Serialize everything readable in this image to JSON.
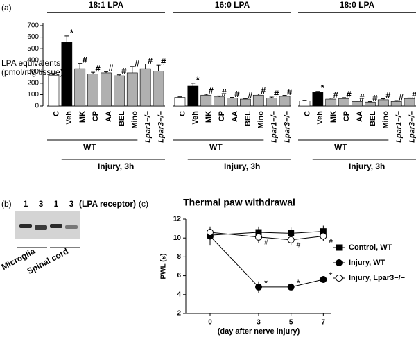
{
  "chart_data": [
    {
      "type": "bar",
      "panel_label": "(a)",
      "title": "18:1 LPA",
      "y_label": [
        "LPA equivalents",
        "(pmol/mg tissue)"
      ],
      "categories": [
        "C",
        "Veh",
        "MK",
        "CP",
        "AA",
        "BEL",
        "Mino",
        "Lpar1−/−",
        "Lpar3−/−"
      ],
      "values": [
        270,
        555,
        325,
        280,
        290,
        265,
        290,
        325,
        305
      ],
      "errors": [
        15,
        55,
        45,
        15,
        10,
        8,
        55,
        40,
        50
      ],
      "markers": [
        null,
        "*",
        "#",
        "#",
        "#",
        "#",
        "#",
        "#",
        "#"
      ],
      "colors": [
        "#ffffff",
        "#000000",
        "#b0b0b0",
        "#b0b0b0",
        "#b0b0b0",
        "#b0b0b0",
        "#b0b0b0",
        "#b0b0b0",
        "#b0b0b0"
      ],
      "ylim": [
        0,
        700
      ],
      "yticks": [
        0,
        100,
        200,
        300,
        400,
        500,
        600,
        700
      ],
      "group_labels": [
        "WT",
        "Injury, 3h"
      ]
    },
    {
      "type": "bar",
      "title": "16:0 LPA",
      "categories": [
        "C",
        "Veh",
        "MK",
        "CP",
        "AA",
        "BEL",
        "Mino",
        "Lpar1−/−",
        "Lpar3−/−"
      ],
      "values": [
        75,
        175,
        95,
        80,
        70,
        60,
        95,
        70,
        85
      ],
      "errors": [
        5,
        25,
        8,
        8,
        5,
        5,
        10,
        8,
        8
      ],
      "markers": [
        null,
        "*",
        "#",
        "#",
        "#",
        "#",
        "#",
        "#",
        "#"
      ],
      "colors": [
        "#ffffff",
        "#000000",
        "#b0b0b0",
        "#b0b0b0",
        "#b0b0b0",
        "#b0b0b0",
        "#b0b0b0",
        "#b0b0b0",
        "#b0b0b0"
      ],
      "ylim": [
        0,
        700
      ],
      "group_labels": [
        "WT",
        "Injury, 3h"
      ]
    },
    {
      "type": "bar",
      "title": "18:0 LPA",
      "categories": [
        "C",
        "Veh",
        "MK",
        "CP",
        "AA",
        "BEL",
        "Mino",
        "Lpar1−/−",
        "Lpar3−/−"
      ],
      "values": [
        45,
        120,
        60,
        65,
        40,
        35,
        55,
        40,
        65
      ],
      "errors": [
        5,
        8,
        8,
        8,
        5,
        5,
        8,
        8,
        5
      ],
      "markers": [
        null,
        "*",
        "#",
        "#",
        "#",
        "#",
        "#",
        "#",
        "#"
      ],
      "colors": [
        "#ffffff",
        "#000000",
        "#b0b0b0",
        "#b0b0b0",
        "#b0b0b0",
        "#b0b0b0",
        "#b0b0b0",
        "#b0b0b0",
        "#b0b0b0"
      ],
      "ylim": [
        0,
        700
      ],
      "group_labels": [
        "WT",
        "Injury, 3h"
      ]
    },
    {
      "type": "line",
      "panel_label": "(c)",
      "title": "Thermal paw withdrawal",
      "x_label": "(day after nerve injury)",
      "y_label": "PWL (s)",
      "x": [
        0,
        3,
        5,
        7
      ],
      "xlim": [
        -1.5,
        7.5
      ],
      "xticks": [
        0,
        3,
        5,
        7
      ],
      "ylim": [
        2,
        12
      ],
      "yticks": [
        2,
        4,
        6,
        8,
        10,
        12
      ],
      "series": [
        {
          "name": "Control, WT",
          "color": "#000000",
          "fill": "#000000",
          "marker": "square",
          "values": [
            10.3,
            10.6,
            10.5,
            10.7
          ],
          "errors": [
            0.8,
            0.6,
            0.6,
            0.6
          ],
          "markers": [
            null,
            null,
            null,
            null
          ]
        },
        {
          "name": "Injury, WT",
          "color": "#000000",
          "fill": "#000000",
          "marker": "circle",
          "values": [
            10.2,
            4.8,
            4.8,
            5.6
          ],
          "errors": [
            1.0,
            0.6,
            0.4,
            0.2
          ],
          "markers": [
            null,
            "*",
            "*",
            "*"
          ]
        },
        {
          "name": "Injury, Lpar3−/−",
          "color": "#000000",
          "fill": "#ffffff",
          "marker": "circle",
          "values": [
            10.6,
            10.1,
            9.8,
            10.2
          ],
          "errors": [
            0.6,
            0.6,
            0.6,
            0.5
          ],
          "markers": [
            null,
            "#",
            "#",
            "#"
          ]
        }
      ]
    }
  ],
  "gel": {
    "panel_label": "(b)",
    "lanes": [
      "1",
      "3",
      "1",
      "3"
    ],
    "lane_note": "(LPA receptor)",
    "samples": [
      "Microglia",
      "Spinal cord"
    ]
  }
}
